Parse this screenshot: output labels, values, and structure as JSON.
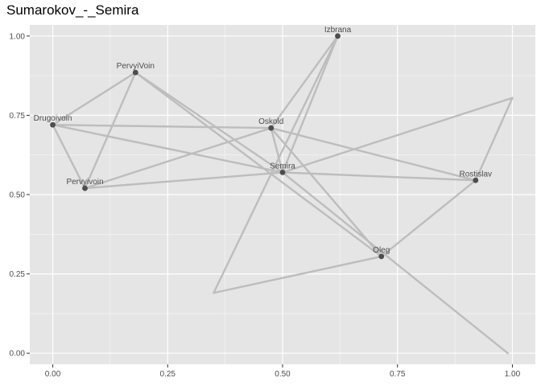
{
  "title": "Sumarokov_-_Semira",
  "colors": {
    "panel": "#e5e5e5",
    "grid_major": "#ffffff",
    "edge": "#bdbdbd",
    "node": "#4d4d4d",
    "text": "#4d4d4d"
  },
  "chart_data": {
    "type": "scatter",
    "title": "Sumarokov_-_Semira",
    "xlabel": "",
    "ylabel": "",
    "xlim": [
      -0.05,
      1.05
    ],
    "ylim": [
      -0.035,
      1.035
    ],
    "x_ticks": [
      0.0,
      0.25,
      0.5,
      0.75,
      1.0
    ],
    "x_tick_labels": [
      "0.00",
      "0.25",
      "0.50",
      "0.75",
      "1.00"
    ],
    "y_ticks": [
      0.0,
      0.25,
      0.5,
      0.75,
      1.0
    ],
    "y_tick_labels": [
      "0.00",
      "0.25",
      "0.50",
      "0.75",
      "1.00"
    ],
    "grid": true,
    "nodes": [
      {
        "name": "Izbrana",
        "x": 0.62,
        "y": 1.0,
        "label": "Izbrana"
      },
      {
        "name": "PervyiVoin",
        "x": 0.18,
        "y": 0.885,
        "label": "PervyiVoin"
      },
      {
        "name": "Drugoivoin",
        "x": 0.0,
        "y": 0.72,
        "label": "Drugoivoin"
      },
      {
        "name": "Oskold",
        "x": 0.475,
        "y": 0.71,
        "label": "Oskold"
      },
      {
        "name": "Semira",
        "x": 0.5,
        "y": 0.57,
        "label": "Semira"
      },
      {
        "name": "Rostislav",
        "x": 0.92,
        "y": 0.545,
        "label": "Rostislav"
      },
      {
        "name": "Pervyivoin",
        "x": 0.07,
        "y": 0.52,
        "label": "Pervyivoin"
      },
      {
        "name": "Oleg",
        "x": 0.715,
        "y": 0.305,
        "label": "Oleg"
      },
      {
        "name": "p1",
        "x": 1.0,
        "y": 0.805,
        "label": ""
      },
      {
        "name": "p2",
        "x": 0.35,
        "y": 0.19,
        "label": ""
      },
      {
        "name": "p3",
        "x": 0.99,
        "y": 0.0,
        "label": ""
      }
    ],
    "edges": [
      [
        "Drugoivoin",
        "PervyiVoin"
      ],
      [
        "Drugoivoin",
        "Pervyivoin"
      ],
      [
        "Drugoivoin",
        "Oskold"
      ],
      [
        "Drugoivoin",
        "Semira"
      ],
      [
        "PervyiVoin",
        "Pervyivoin"
      ],
      [
        "PervyiVoin",
        "Semira"
      ],
      [
        "PervyiVoin",
        "Oleg"
      ],
      [
        "Pervyivoin",
        "Oskold"
      ],
      [
        "Pervyivoin",
        "Semira"
      ],
      [
        "Oskold",
        "Izbrana"
      ],
      [
        "Oskold",
        "Semira"
      ],
      [
        "Oskold",
        "Rostislav"
      ],
      [
        "Oskold",
        "Oleg"
      ],
      [
        "Izbrana",
        "Semira"
      ],
      [
        "Semira",
        "Rostislav"
      ],
      [
        "Semira",
        "p1"
      ],
      [
        "Semira",
        "p3"
      ],
      [
        "Rostislav",
        "p1"
      ],
      [
        "Rostislav",
        "Oleg"
      ],
      [
        "Izbrana",
        "p2"
      ],
      [
        "p2",
        "Oleg"
      ]
    ]
  }
}
